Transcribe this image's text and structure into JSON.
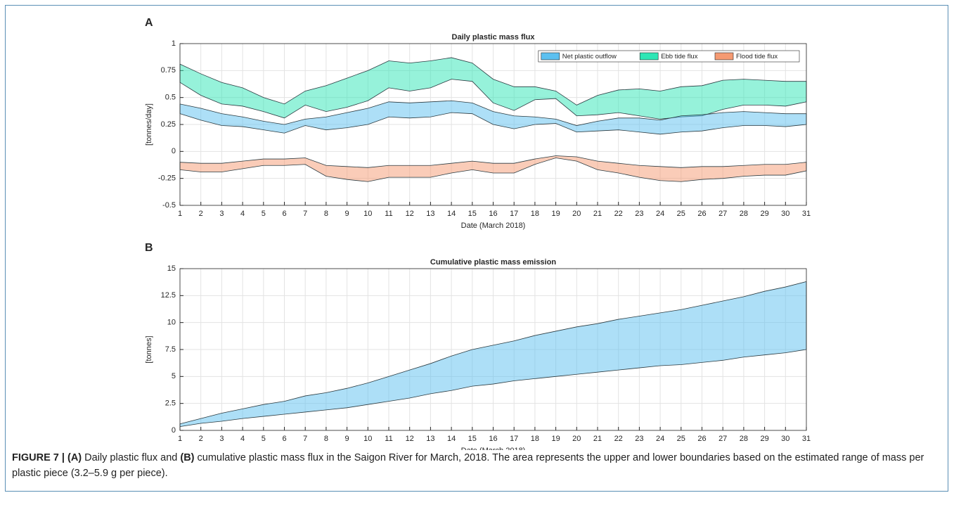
{
  "chart_data": [
    {
      "type": "area",
      "panel": "A",
      "title": "Daily plastic mass flux",
      "x_label": "Date (March 2018)",
      "y_label": "[tonnes/day]",
      "x": [
        1,
        2,
        3,
        4,
        5,
        6,
        7,
        8,
        9,
        10,
        11,
        12,
        13,
        14,
        15,
        16,
        17,
        18,
        19,
        20,
        21,
        22,
        23,
        24,
        25,
        26,
        27,
        28,
        29,
        30,
        31
      ],
      "xlim": [
        1,
        31
      ],
      "xticks": [
        1,
        2,
        3,
        4,
        5,
        6,
        7,
        8,
        9,
        10,
        11,
        12,
        13,
        14,
        15,
        16,
        17,
        18,
        19,
        20,
        21,
        22,
        23,
        24,
        25,
        26,
        27,
        28,
        29,
        30,
        31
      ],
      "ylim": [
        -0.5,
        1
      ],
      "yticks": [
        -0.5,
        -0.25,
        0,
        0.25,
        0.5,
        0.75,
        1
      ],
      "grid": true,
      "legend": "upper right",
      "series": [
        {
          "name": "Ebb tide flux",
          "color": "#2ee6b5",
          "upper": [
            0.81,
            0.72,
            0.64,
            0.59,
            0.5,
            0.44,
            0.56,
            0.61,
            0.68,
            0.75,
            0.84,
            0.82,
            0.84,
            0.87,
            0.82,
            0.67,
            0.6,
            0.6,
            0.56,
            0.43,
            0.52,
            0.57,
            0.58,
            0.56,
            0.6,
            0.61,
            0.66,
            0.67,
            0.66,
            0.65,
            0.65
          ],
          "lower": [
            0.64,
            0.52,
            0.44,
            0.42,
            0.37,
            0.31,
            0.43,
            0.37,
            0.41,
            0.47,
            0.59,
            0.56,
            0.59,
            0.67,
            0.65,
            0.45,
            0.38,
            0.48,
            0.49,
            0.33,
            0.34,
            0.36,
            0.33,
            0.3,
            0.32,
            0.33,
            0.39,
            0.43,
            0.43,
            0.42,
            0.46
          ]
        },
        {
          "name": "Net plastic outflow",
          "color": "#5cc0f0",
          "upper": [
            0.44,
            0.4,
            0.35,
            0.32,
            0.28,
            0.25,
            0.3,
            0.32,
            0.36,
            0.4,
            0.46,
            0.45,
            0.46,
            0.47,
            0.45,
            0.37,
            0.33,
            0.32,
            0.3,
            0.24,
            0.28,
            0.31,
            0.31,
            0.29,
            0.33,
            0.34,
            0.36,
            0.37,
            0.36,
            0.35,
            0.35
          ],
          "lower": [
            0.35,
            0.29,
            0.24,
            0.23,
            0.2,
            0.17,
            0.24,
            0.2,
            0.22,
            0.25,
            0.32,
            0.31,
            0.32,
            0.36,
            0.35,
            0.25,
            0.21,
            0.25,
            0.26,
            0.18,
            0.19,
            0.2,
            0.18,
            0.16,
            0.18,
            0.19,
            0.22,
            0.24,
            0.24,
            0.23,
            0.25
          ]
        },
        {
          "name": "Flood tide flux",
          "color": "#f59a72",
          "upper": [
            -0.1,
            -0.11,
            -0.11,
            -0.09,
            -0.07,
            -0.07,
            -0.06,
            -0.13,
            -0.14,
            -0.15,
            -0.13,
            -0.13,
            -0.13,
            -0.11,
            -0.09,
            -0.11,
            -0.11,
            -0.07,
            -0.04,
            -0.05,
            -0.09,
            -0.11,
            -0.13,
            -0.14,
            -0.15,
            -0.14,
            -0.14,
            -0.13,
            -0.12,
            -0.12,
            -0.1
          ],
          "lower": [
            -0.17,
            -0.19,
            -0.19,
            -0.16,
            -0.13,
            -0.13,
            -0.12,
            -0.23,
            -0.26,
            -0.28,
            -0.24,
            -0.24,
            -0.24,
            -0.2,
            -0.17,
            -0.2,
            -0.2,
            -0.12,
            -0.06,
            -0.09,
            -0.17,
            -0.2,
            -0.24,
            -0.27,
            -0.28,
            -0.26,
            -0.25,
            -0.23,
            -0.22,
            -0.22,
            -0.18
          ]
        }
      ]
    },
    {
      "type": "area",
      "panel": "B",
      "title": "Cumulative plastic mass emission",
      "x_label": "Date (March 2018)",
      "y_label": "[tonnes]",
      "x": [
        1,
        2,
        3,
        4,
        5,
        6,
        7,
        8,
        9,
        10,
        11,
        12,
        13,
        14,
        15,
        16,
        17,
        18,
        19,
        20,
        21,
        22,
        23,
        24,
        25,
        26,
        27,
        28,
        29,
        30,
        31
      ],
      "xlim": [
        1,
        31
      ],
      "xticks": [
        1,
        2,
        3,
        4,
        5,
        6,
        7,
        8,
        9,
        10,
        11,
        12,
        13,
        14,
        15,
        16,
        17,
        18,
        19,
        20,
        21,
        22,
        23,
        24,
        25,
        26,
        27,
        28,
        29,
        30,
        31
      ],
      "ylim": [
        0,
        15
      ],
      "yticks": [
        0,
        2.5,
        5,
        7.5,
        10,
        12.5,
        15
      ],
      "grid": true,
      "series": [
        {
          "color": "#5cc0f0",
          "upper": [
            0.6,
            1.1,
            1.6,
            2.0,
            2.4,
            2.7,
            3.2,
            3.5,
            3.9,
            4.4,
            5.0,
            5.6,
            6.2,
            6.9,
            7.5,
            7.9,
            8.3,
            8.8,
            9.2,
            9.6,
            9.9,
            10.3,
            10.6,
            10.9,
            11.2,
            11.6,
            12.0,
            12.4,
            12.9,
            13.3,
            13.8
          ],
          "lower": [
            0.35,
            0.65,
            0.85,
            1.1,
            1.3,
            1.5,
            1.7,
            1.9,
            2.1,
            2.4,
            2.7,
            3.0,
            3.4,
            3.7,
            4.1,
            4.3,
            4.6,
            4.8,
            5.0,
            5.2,
            5.4,
            5.6,
            5.8,
            6.0,
            6.1,
            6.3,
            6.5,
            6.8,
            7.0,
            7.2,
            7.5
          ]
        }
      ]
    }
  ],
  "caption": [
    {
      "text": "FIGURE 7 | (A)",
      "bold": true
    },
    {
      "text": " Daily plastic flux and ",
      "bold": false
    },
    {
      "text": "(B)",
      "bold": true
    },
    {
      "text": " cumulative plastic mass flux in the Saigon River for March, 2018. The area represents the upper and lower boundaries based on the estimated range of mass per plastic piece (3.2–5.9 g per piece).",
      "bold": false
    }
  ]
}
